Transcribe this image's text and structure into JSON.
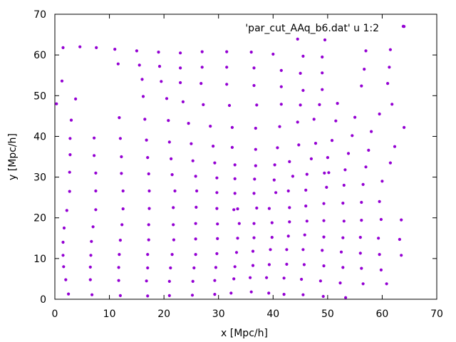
{
  "chart_data": {
    "type": "scatter",
    "title": "",
    "xlabel": "x [Mpc/h]",
    "ylabel": "y [Mpc/h]",
    "xlim": [
      0,
      70
    ],
    "ylim": [
      0,
      70
    ],
    "xticks": [
      0,
      10,
      20,
      30,
      40,
      50,
      60,
      70
    ],
    "yticks": [
      0,
      10,
      20,
      30,
      40,
      50,
      60,
      70
    ],
    "grid": false,
    "legend_position": "top-right",
    "series": [
      {
        "name": "'par_cut_AAq_b6.dat' u 1:2",
        "color": "#9400d3",
        "points": [
          [
            1.5,
            61.8
          ],
          [
            4.6,
            62.0
          ],
          [
            7.6,
            61.8
          ],
          [
            11.0,
            61.4
          ],
          [
            15.0,
            61.0
          ],
          [
            19.0,
            60.7
          ],
          [
            23.0,
            60.5
          ],
          [
            27.0,
            60.8
          ],
          [
            31.5,
            60.8
          ],
          [
            36.0,
            60.7
          ],
          [
            40.0,
            60.2
          ],
          [
            44.5,
            63.9
          ],
          [
            49.5,
            63.7
          ],
          [
            64.0,
            67.0
          ],
          [
            11.6,
            57.8
          ],
          [
            15.5,
            57.5
          ],
          [
            19.2,
            57.2
          ],
          [
            23.0,
            56.8
          ],
          [
            27.0,
            57.0
          ],
          [
            31.5,
            57.0
          ],
          [
            36.5,
            56.8
          ],
          [
            41.5,
            56.2
          ],
          [
            45.5,
            59.7
          ],
          [
            49.0,
            59.5
          ],
          [
            57.0,
            61.0
          ],
          [
            61.5,
            61.3
          ],
          [
            1.3,
            53.6
          ],
          [
            16.0,
            54.0
          ],
          [
            19.5,
            53.5
          ],
          [
            23.0,
            53.2
          ],
          [
            26.8,
            53.0
          ],
          [
            31.5,
            52.8
          ],
          [
            36.5,
            52.5
          ],
          [
            41.5,
            52.2
          ],
          [
            45.0,
            55.5
          ],
          [
            49.0,
            55.6
          ],
          [
            56.7,
            56.5
          ],
          [
            61.3,
            57.0
          ],
          [
            0.3,
            48.0
          ],
          [
            3.8,
            49.2
          ],
          [
            16.2,
            49.8
          ],
          [
            20.5,
            49.3
          ],
          [
            23.5,
            48.5
          ],
          [
            27.2,
            47.8
          ],
          [
            32.0,
            47.6
          ],
          [
            37.0,
            47.7
          ],
          [
            41.5,
            47.9
          ],
          [
            45.5,
            51.3
          ],
          [
            49.0,
            51.5
          ],
          [
            56.2,
            52.4
          ],
          [
            61.0,
            53.0
          ],
          [
            3.0,
            44.0
          ],
          [
            11.8,
            44.6
          ],
          [
            16.5,
            44.2
          ],
          [
            20.8,
            43.9
          ],
          [
            24.5,
            43.2
          ],
          [
            28.5,
            42.5
          ],
          [
            32.5,
            42.2
          ],
          [
            36.8,
            42.0
          ],
          [
            41.2,
            42.4
          ],
          [
            45.0,
            47.7
          ],
          [
            48.5,
            47.8
          ],
          [
            51.8,
            48.1
          ],
          [
            59.5,
            45.5
          ],
          [
            61.8,
            47.9
          ],
          [
            2.8,
            39.5
          ],
          [
            7.2,
            39.6
          ],
          [
            12.0,
            39.5
          ],
          [
            16.8,
            39.1
          ],
          [
            21.0,
            38.6
          ],
          [
            25.0,
            38.2
          ],
          [
            29.0,
            37.6
          ],
          [
            32.5,
            37.3
          ],
          [
            36.8,
            36.8
          ],
          [
            40.8,
            37.2
          ],
          [
            44.7,
            37.9
          ],
          [
            47.8,
            38.3
          ],
          [
            50.8,
            39.0
          ],
          [
            54.5,
            40.2
          ],
          [
            58.0,
            41.2
          ],
          [
            64.0,
            42.2
          ],
          [
            47.5,
            44.2
          ],
          [
            44.5,
            43.5
          ],
          [
            51.5,
            43.8
          ],
          [
            55.0,
            44.7
          ],
          [
            2.8,
            35.5
          ],
          [
            7.2,
            35.3
          ],
          [
            12.2,
            35.0
          ],
          [
            17.0,
            34.8
          ],
          [
            21.3,
            34.5
          ],
          [
            25.3,
            34.0
          ],
          [
            29.3,
            33.5
          ],
          [
            33.0,
            33.0
          ],
          [
            36.8,
            32.8
          ],
          [
            40.3,
            33.0
          ],
          [
            43.0,
            33.8
          ],
          [
            47.0,
            34.5
          ],
          [
            50.0,
            34.8
          ],
          [
            53.8,
            35.8
          ],
          [
            57.5,
            36.6
          ],
          [
            62.3,
            37.5
          ],
          [
            2.7,
            31.2
          ],
          [
            7.5,
            31.0
          ],
          [
            12.2,
            30.9
          ],
          [
            17.2,
            30.8
          ],
          [
            21.5,
            30.6
          ],
          [
            25.8,
            30.2
          ],
          [
            29.7,
            29.8
          ],
          [
            33.0,
            29.6
          ],
          [
            36.6,
            29.5
          ],
          [
            40.2,
            29.3
          ],
          [
            43.6,
            30.2
          ],
          [
            46.2,
            30.7
          ],
          [
            49.4,
            31.0
          ],
          [
            50.2,
            31.1
          ],
          [
            53.2,
            31.8
          ],
          [
            57.0,
            32.5
          ],
          [
            61.5,
            33.5
          ],
          [
            2.7,
            26.5
          ],
          [
            7.5,
            26.6
          ],
          [
            12.5,
            26.6
          ],
          [
            17.3,
            26.6
          ],
          [
            22.0,
            26.6
          ],
          [
            26.0,
            26.6
          ],
          [
            29.7,
            26.2
          ],
          [
            33.0,
            26.0
          ],
          [
            36.5,
            26.0
          ],
          [
            40.5,
            26.2
          ],
          [
            42.8,
            26.6
          ],
          [
            46.0,
            26.8
          ],
          [
            49.8,
            27.5
          ],
          [
            53.0,
            28.0
          ],
          [
            56.5,
            28.2
          ],
          [
            60.0,
            29.0
          ],
          [
            2.2,
            21.8
          ],
          [
            7.5,
            22.0
          ],
          [
            12.5,
            22.2
          ],
          [
            17.3,
            22.3
          ],
          [
            21.7,
            22.5
          ],
          [
            25.9,
            22.6
          ],
          [
            29.7,
            22.3
          ],
          [
            32.8,
            22.0
          ],
          [
            33.5,
            22.2
          ],
          [
            37.0,
            22.4
          ],
          [
            39.3,
            22.3
          ],
          [
            43.0,
            22.5
          ],
          [
            46.0,
            22.9
          ],
          [
            49.3,
            23.5
          ],
          [
            52.8,
            23.6
          ],
          [
            56.2,
            23.8
          ],
          [
            59.5,
            24.0
          ],
          [
            1.7,
            17.5
          ],
          [
            7.0,
            17.8
          ],
          [
            12.3,
            18.3
          ],
          [
            17.2,
            18.3
          ],
          [
            21.7,
            18.3
          ],
          [
            25.8,
            18.6
          ],
          [
            29.8,
            18.5
          ],
          [
            33.8,
            18.6
          ],
          [
            36.5,
            18.6
          ],
          [
            39.8,
            18.8
          ],
          [
            43.0,
            19.0
          ],
          [
            46.2,
            19.2
          ],
          [
            49.3,
            19.3
          ],
          [
            53.0,
            19.2
          ],
          [
            56.2,
            19.4
          ],
          [
            59.8,
            19.6
          ],
          [
            63.5,
            19.5
          ],
          [
            1.5,
            14.0
          ],
          [
            6.7,
            14.2
          ],
          [
            12.0,
            14.5
          ],
          [
            17.2,
            14.6
          ],
          [
            21.8,
            14.6
          ],
          [
            25.8,
            14.8
          ],
          [
            29.8,
            14.9
          ],
          [
            33.5,
            15.0
          ],
          [
            36.5,
            15.1
          ],
          [
            39.8,
            15.2
          ],
          [
            42.8,
            15.5
          ],
          [
            45.8,
            15.8
          ],
          [
            49.3,
            15.3
          ],
          [
            52.8,
            15.1
          ],
          [
            56.0,
            15.2
          ],
          [
            59.3,
            15.0
          ],
          [
            63.2,
            14.7
          ],
          [
            1.5,
            10.8
          ],
          [
            6.6,
            10.8
          ],
          [
            11.8,
            11.0
          ],
          [
            17.0,
            11.0
          ],
          [
            21.5,
            11.0
          ],
          [
            25.8,
            11.0
          ],
          [
            29.7,
            11.2
          ],
          [
            33.3,
            11.5
          ],
          [
            36.3,
            11.8
          ],
          [
            39.5,
            12.2
          ],
          [
            42.5,
            12.2
          ],
          [
            45.5,
            12.2
          ],
          [
            49.0,
            12.0
          ],
          [
            52.5,
            11.6
          ],
          [
            56.0,
            11.3
          ],
          [
            59.5,
            11.0
          ],
          [
            63.5,
            10.8
          ],
          [
            1.6,
            8.0
          ],
          [
            6.5,
            7.9
          ],
          [
            11.7,
            7.8
          ],
          [
            17.0,
            7.7
          ],
          [
            21.2,
            7.7
          ],
          [
            25.5,
            7.7
          ],
          [
            29.5,
            7.8
          ],
          [
            33.0,
            8.0
          ],
          [
            36.3,
            8.3
          ],
          [
            39.3,
            8.5
          ],
          [
            42.5,
            8.6
          ],
          [
            45.7,
            8.5
          ],
          [
            49.3,
            8.2
          ],
          [
            52.8,
            7.8
          ],
          [
            56.2,
            7.6
          ],
          [
            59.8,
            7.2
          ],
          [
            2.0,
            4.8
          ],
          [
            6.5,
            4.8
          ],
          [
            11.7,
            4.6
          ],
          [
            16.8,
            4.5
          ],
          [
            21.0,
            4.4
          ],
          [
            25.3,
            4.4
          ],
          [
            29.3,
            4.6
          ],
          [
            32.8,
            5.0
          ],
          [
            35.8,
            5.3
          ],
          [
            38.8,
            5.3
          ],
          [
            42.0,
            5.2
          ],
          [
            45.2,
            4.9
          ],
          [
            48.7,
            4.5
          ],
          [
            52.3,
            4.0
          ],
          [
            56.5,
            3.8
          ],
          [
            60.8,
            3.8
          ],
          [
            2.5,
            1.3
          ],
          [
            6.8,
            1.1
          ],
          [
            12.0,
            0.9
          ],
          [
            17.0,
            0.8
          ],
          [
            21.0,
            0.9
          ],
          [
            25.2,
            1.0
          ],
          [
            29.3,
            1.2
          ],
          [
            32.3,
            1.5
          ],
          [
            36.0,
            1.8
          ],
          [
            39.2,
            1.5
          ],
          [
            42.0,
            1.2
          ],
          [
            45.5,
            1.1
          ],
          [
            49.2,
            0.7
          ],
          [
            53.3,
            0.4
          ]
        ]
      }
    ]
  }
}
